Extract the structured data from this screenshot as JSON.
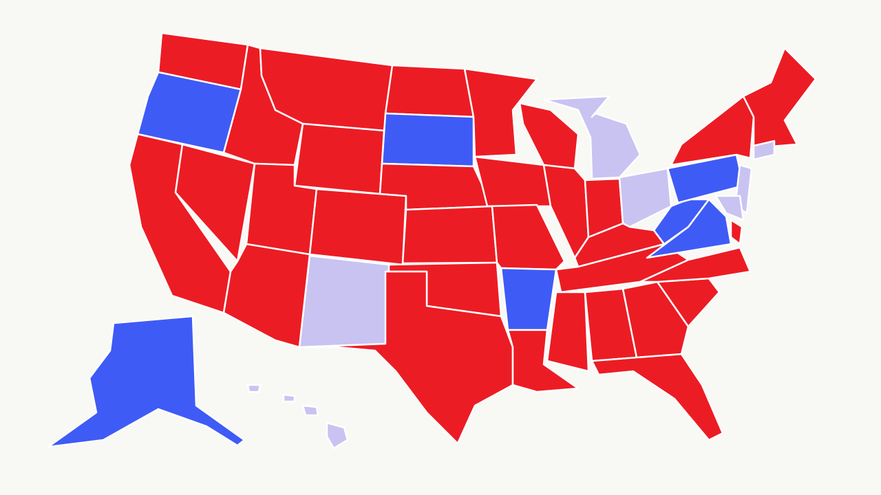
{
  "map": {
    "fills": [
      "#ec1c24",
      "#3f5bf5",
      "#c9c3f2"
    ],
    "background": "#f8f8f4",
    "border": "#ffffff"
  }
}
